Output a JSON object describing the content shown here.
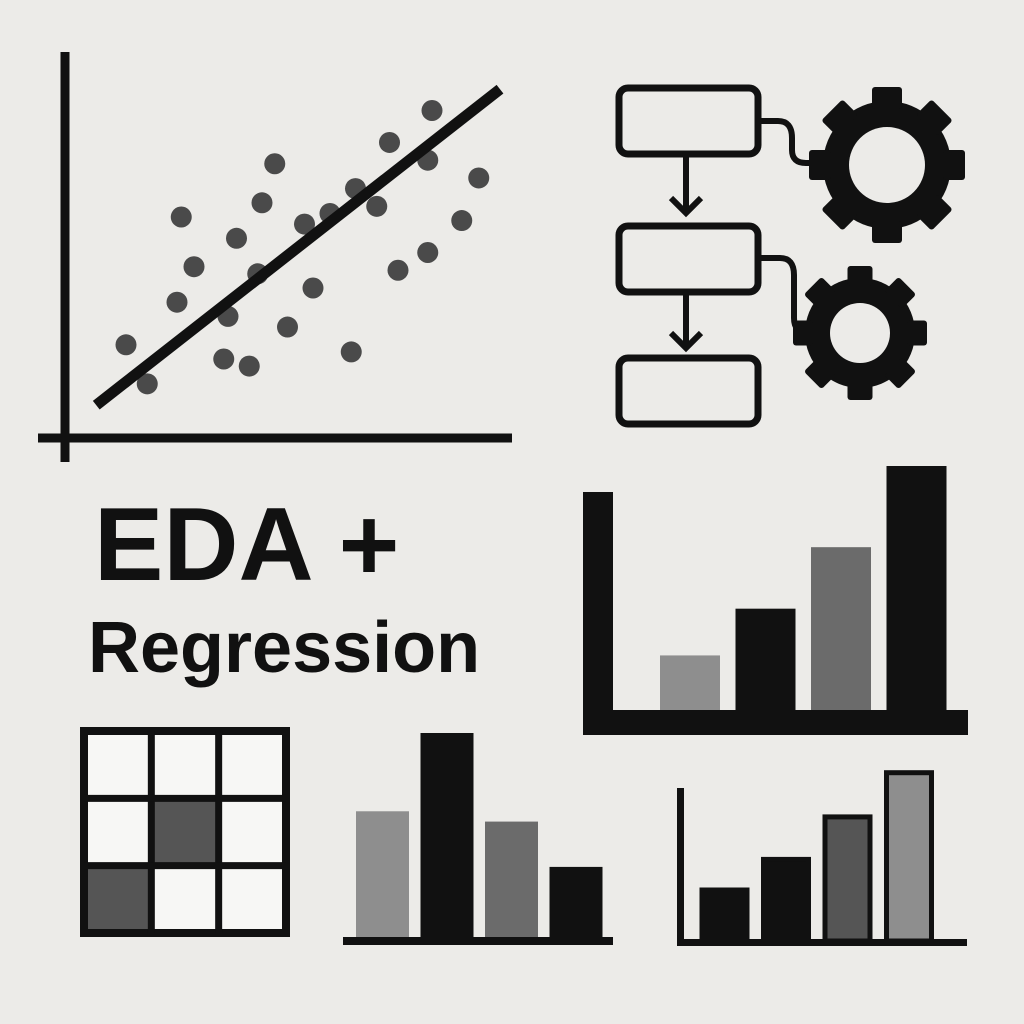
{
  "title": {
    "line1": "EDA +",
    "line2": "Regression"
  },
  "colors": {
    "background": "#ecebe8",
    "ink": "#111111",
    "dark_gray": "#555555",
    "mid_gray": "#6b6b6b",
    "light_gray": "#8e8e8e",
    "dot_gray": "#4a4a4a"
  },
  "icons": [
    "scatter-regression-icon",
    "flowchart-gears-icon",
    "bar-chart-icon",
    "heatmap-grid-icon",
    "gear-icon"
  ],
  "scatter": {
    "trend_line": {
      "from": [
        0.05,
        0.07
      ],
      "to": [
        1.0,
        0.96
      ]
    },
    "points": [
      [
        0.17,
        0.13
      ],
      [
        0.24,
        0.36
      ],
      [
        0.12,
        0.24
      ],
      [
        0.35,
        0.2
      ],
      [
        0.28,
        0.46
      ],
      [
        0.36,
        0.32
      ],
      [
        0.41,
        0.18
      ],
      [
        0.5,
        0.29
      ],
      [
        0.47,
        0.75
      ],
      [
        0.38,
        0.54
      ],
      [
        0.43,
        0.44
      ],
      [
        0.56,
        0.4
      ],
      [
        0.65,
        0.22
      ],
      [
        0.66,
        0.68
      ],
      [
        0.6,
        0.61
      ],
      [
        0.54,
        0.58
      ],
      [
        0.76,
        0.45
      ],
      [
        0.71,
        0.63
      ],
      [
        0.83,
        0.5
      ],
      [
        0.91,
        0.59
      ],
      [
        0.74,
        0.81
      ],
      [
        0.83,
        0.76
      ],
      [
        0.95,
        0.71
      ],
      [
        0.84,
        0.9
      ],
      [
        0.44,
        0.64
      ],
      [
        0.25,
        0.6
      ]
    ]
  },
  "large_bar_chart": {
    "values": [
      0.23,
      0.42,
      0.67,
      1.0
    ],
    "shades": [
      "light_gray",
      "ink",
      "mid_gray",
      "ink"
    ]
  },
  "middle_bar_chart": {
    "values": [
      0.62,
      1.0,
      0.57,
      0.35
    ],
    "shades": [
      "light_gray",
      "ink",
      "mid_gray",
      "ink"
    ]
  },
  "small_bar_chart": {
    "values": [
      0.3,
      0.48,
      0.73,
      0.99
    ],
    "shades": [
      "ink",
      "ink",
      "dark_gray",
      "light_gray"
    ]
  },
  "heatmap": {
    "rows": 3,
    "cols": 3,
    "filled_cells": [
      {
        "row": 1,
        "col": 1,
        "shade": "dark_gray"
      },
      {
        "row": 2,
        "col": 0,
        "shade": "dark_gray"
      }
    ]
  }
}
